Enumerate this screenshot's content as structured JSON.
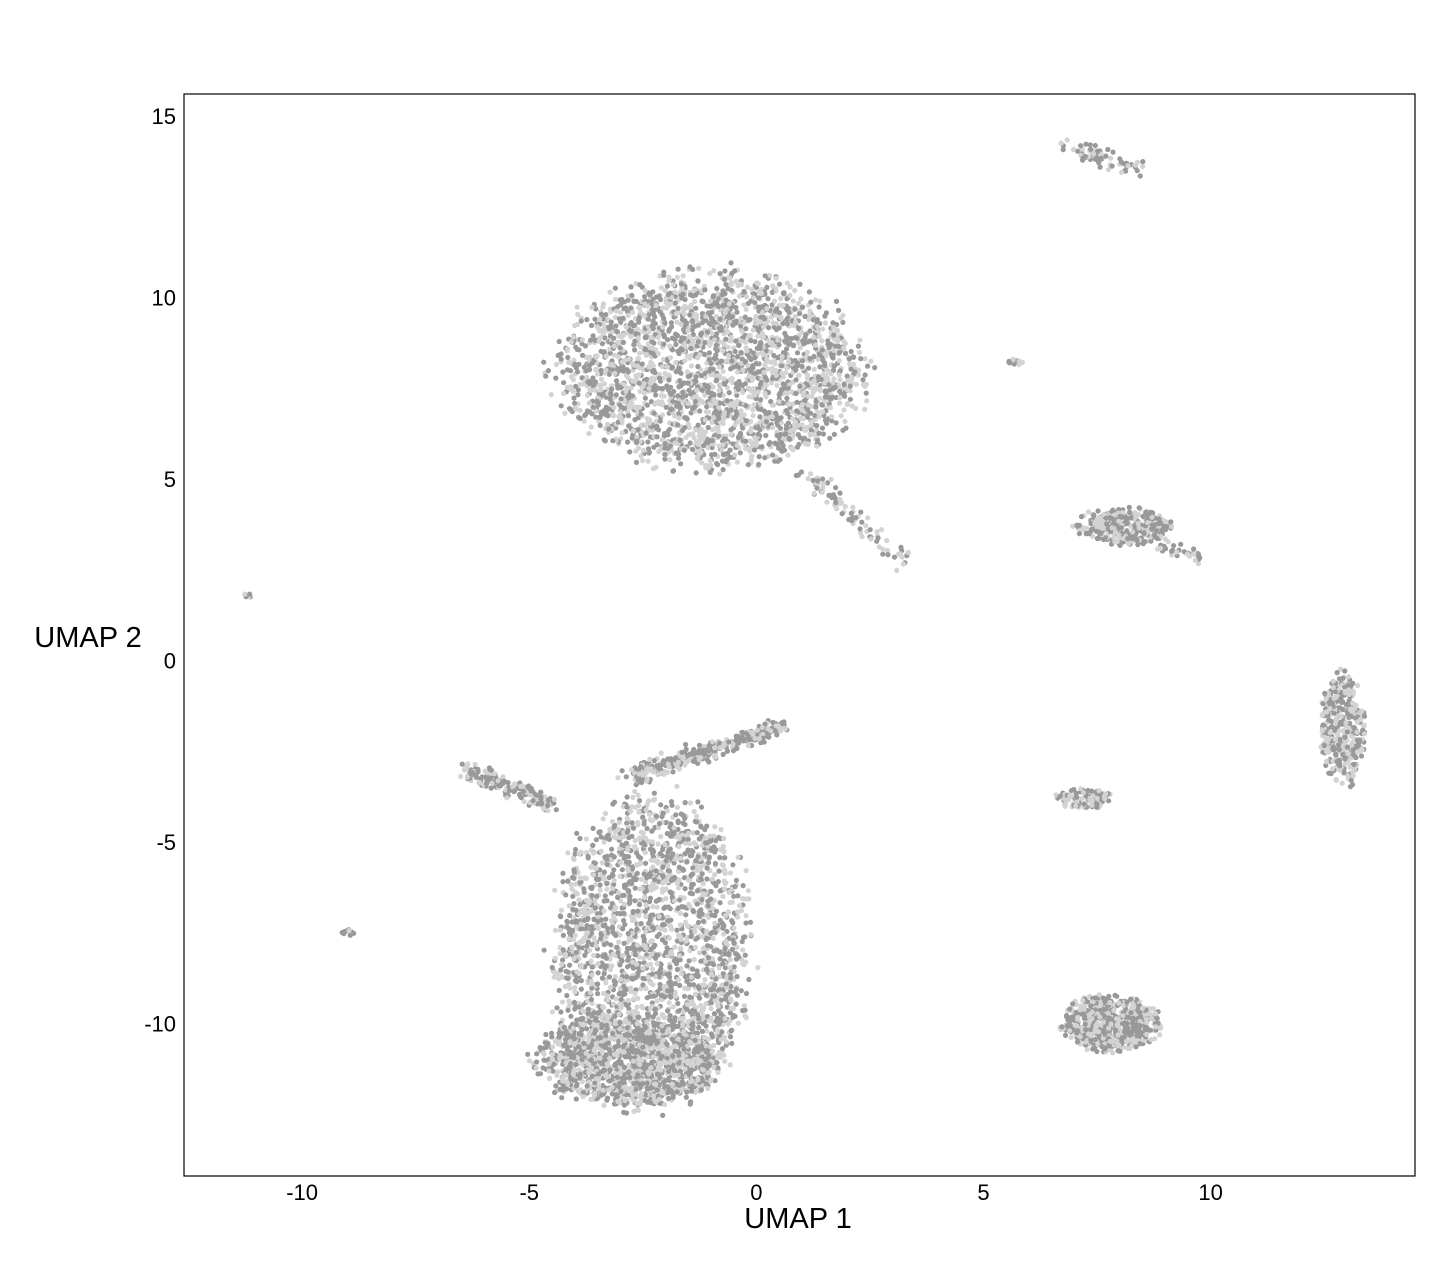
{
  "chart_data": {
    "type": "scatter",
    "title": "",
    "xlabel": "UMAP 1",
    "ylabel": "UMAP 2",
    "xlim": [
      -12.6,
      14.5
    ],
    "ylim": [
      -14.2,
      15.6
    ],
    "x_ticks": [
      -10,
      -5,
      0,
      5,
      10
    ],
    "y_ticks": [
      -10,
      -5,
      0,
      5,
      10,
      15
    ],
    "x_tick_labels": [
      "-10",
      "-5",
      "0",
      "5",
      "10"
    ],
    "y_tick_labels": [
      "-10",
      "-5",
      "0",
      "5",
      "10",
      "15"
    ],
    "grid": false,
    "legend": "none",
    "colors": {
      "dark_points": "#999999",
      "light_points": "#d3d3d3",
      "frame": "#000000"
    },
    "clusters": [
      {
        "name": "upper-main",
        "center": [
          -1.0,
          8.0
        ],
        "radius": [
          3.7,
          3.0
        ],
        "approx_points": 2600
      },
      {
        "name": "upper-tail",
        "from": [
          1.0,
          5.2
        ],
        "to": [
          3.3,
          2.6
        ],
        "approx_points": 90
      },
      {
        "name": "top-strand",
        "from": [
          6.8,
          14.2
        ],
        "to": [
          8.4,
          13.5
        ],
        "approx_points": 70
      },
      {
        "name": "small-dot-a",
        "center": [
          5.7,
          8.2
        ],
        "radius": [
          0.2,
          0.1
        ],
        "approx_points": 15
      },
      {
        "name": "mid-right",
        "center": [
          8.1,
          3.7
        ],
        "radius": [
          1.2,
          0.55
        ],
        "approx_points": 320
      },
      {
        "name": "mid-right-tail",
        "from": [
          8.8,
          3.3
        ],
        "to": [
          9.8,
          2.8
        ],
        "approx_points": 35
      },
      {
        "name": "far-left-dot",
        "center": [
          -11.2,
          1.8
        ],
        "radius": [
          0.1,
          0.08
        ],
        "approx_points": 6
      },
      {
        "name": "right-vertical",
        "center": [
          12.9,
          -1.9
        ],
        "radius": [
          0.55,
          1.7
        ],
        "approx_points": 380
      },
      {
        "name": "small-mid",
        "center": [
          7.2,
          -3.8
        ],
        "radius": [
          0.7,
          0.3
        ],
        "approx_points": 110
      },
      {
        "name": "lower-right",
        "center": [
          7.8,
          -10.0
        ],
        "radius": [
          1.2,
          0.85
        ],
        "approx_points": 600
      },
      {
        "name": "small-dot-b",
        "center": [
          -9.0,
          -7.5
        ],
        "radius": [
          0.15,
          0.1
        ],
        "approx_points": 12
      },
      {
        "name": "lower-main",
        "center": [
          -2.3,
          -8.0
        ],
        "radius": [
          2.4,
          4.7
        ],
        "approx_points": 2300
      },
      {
        "name": "lower-bottom",
        "center": [
          -2.8,
          -11.0
        ],
        "radius": [
          2.3,
          1.4
        ],
        "approx_points": 1100
      },
      {
        "name": "lower-arm-left",
        "from": [
          -6.4,
          -3.0
        ],
        "to": [
          -4.5,
          -4.0
        ],
        "approx_points": 170
      },
      {
        "name": "lower-arm-right",
        "from": [
          -2.8,
          -3.2
        ],
        "to": [
          0.6,
          -1.8
        ],
        "approx_points": 320
      }
    ]
  }
}
